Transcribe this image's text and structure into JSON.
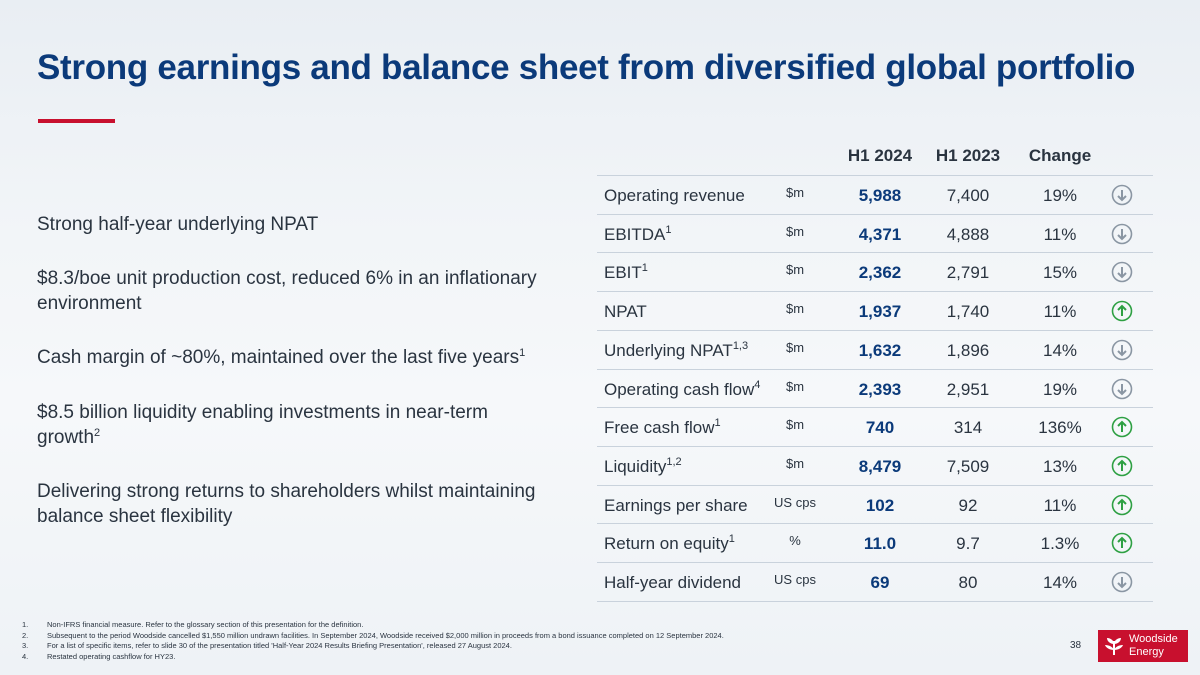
{
  "title": "Strong earnings and balance sheet from diversified global portfolio",
  "bullets": [
    {
      "text": "Strong half-year underlying NPAT",
      "sup": ""
    },
    {
      "text": "$8.3/boe unit production cost, reduced 6% in an inflationary environment",
      "sup": ""
    },
    {
      "text": "Cash margin of ~80%, maintained over the last five years",
      "sup": "1"
    },
    {
      "text": "$8.5 billion liquidity enabling investments in near-term growth",
      "sup": "2"
    },
    {
      "text": "Delivering strong returns to shareholders whilst maintaining balance sheet flexibility",
      "sup": ""
    }
  ],
  "table": {
    "headers": {
      "h1_2024": "H1 2024",
      "h1_2023": "H1 2023",
      "change": "Change"
    },
    "rows": [
      {
        "metric": "Operating revenue",
        "sup": "",
        "unit": "$m",
        "h1_2024": "5,988",
        "h1_2023": "7,400",
        "change": "19%",
        "direction": "down"
      },
      {
        "metric": "EBITDA",
        "sup": "1",
        "unit": "$m",
        "h1_2024": "4,371",
        "h1_2023": "4,888",
        "change": "11%",
        "direction": "down"
      },
      {
        "metric": "EBIT",
        "sup": "1",
        "unit": "$m",
        "h1_2024": "2,362",
        "h1_2023": "2,791",
        "change": "15%",
        "direction": "down"
      },
      {
        "metric": "NPAT",
        "sup": "",
        "unit": "$m",
        "h1_2024": "1,937",
        "h1_2023": "1,740",
        "change": "11%",
        "direction": "up"
      },
      {
        "metric": "Underlying NPAT",
        "sup": "1,3",
        "unit": "$m",
        "h1_2024": "1,632",
        "h1_2023": "1,896",
        "change": "14%",
        "direction": "down"
      },
      {
        "metric": "Operating cash flow",
        "sup": "4",
        "unit": "$m",
        "h1_2024": "2,393",
        "h1_2023": "2,951",
        "change": "19%",
        "direction": "down"
      },
      {
        "metric": "Free cash flow",
        "sup": "1",
        "unit": "$m",
        "h1_2024": "740",
        "h1_2023": "314",
        "change": "136%",
        "direction": "up"
      },
      {
        "metric": "Liquidity",
        "sup": "1,2",
        "unit": "$m",
        "h1_2024": "8,479",
        "h1_2023": "7,509",
        "change": "13%",
        "direction": "up"
      },
      {
        "metric": "Earnings per share",
        "sup": "",
        "unit": "US cps",
        "h1_2024": "102",
        "h1_2023": "92",
        "change": "11%",
        "direction": "up"
      },
      {
        "metric": "Return on equity",
        "sup": "1",
        "unit": "%",
        "h1_2024": "11.0",
        "h1_2023": "9.7",
        "change": "1.3%",
        "direction": "up"
      },
      {
        "metric": "Half-year dividend",
        "sup": "",
        "unit": "US cps",
        "h1_2024": "69",
        "h1_2023": "80",
        "change": "14%",
        "direction": "down"
      }
    ]
  },
  "footnotes": [
    {
      "num": "1.",
      "text": "Non-IFRS financial measure. Refer to the glossary section of this presentation for the definition."
    },
    {
      "num": "2.",
      "text": "Subsequent to the period Woodside cancelled $1,550 million undrawn facilities. In September 2024, Woodside received $2,000 million in proceeds from a bond issuance completed on 12 September 2024."
    },
    {
      "num": "3.",
      "text": "For a list of specific items, refer to slide 30 of the presentation titled 'Half-Year 2024 Results Briefing Presentation', released 27 August 2024."
    },
    {
      "num": "4.",
      "text": "Restated operating cashflow for HY23."
    }
  ],
  "page_number": "38",
  "logo": {
    "line1": "Woodside",
    "line2": "Energy"
  },
  "colors": {
    "up": "#2ea043",
    "down": "#8a96a3",
    "brand": "#c8102e",
    "title": "#0b3a7a"
  }
}
